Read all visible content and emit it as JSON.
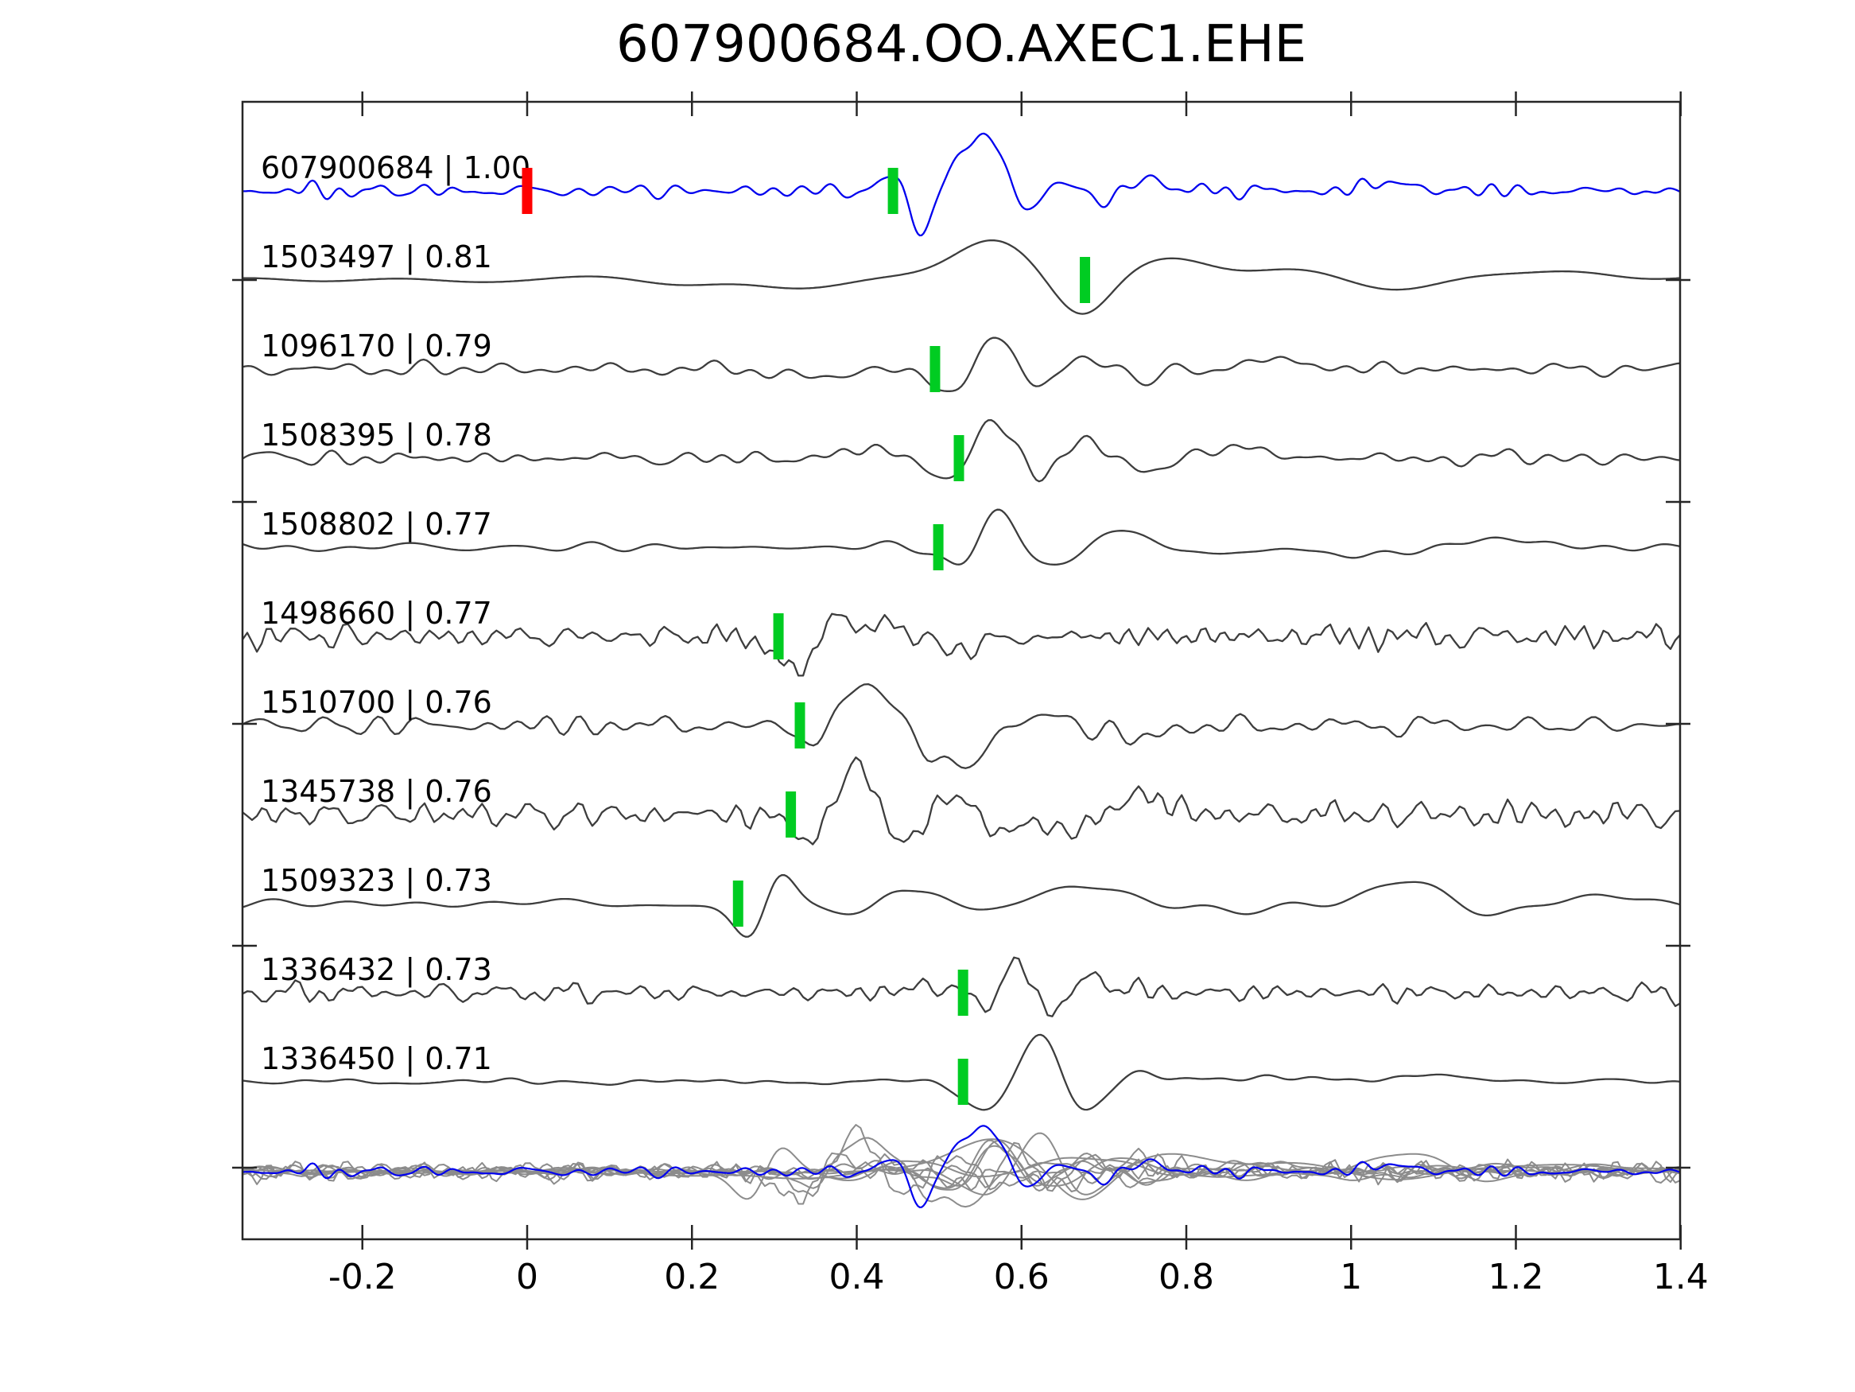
{
  "title": "607900684.OO.AXEC1.EHE",
  "label_separator": " | ",
  "colors": {
    "template_trace": "#0000ee",
    "match_trace": "#3d3d3d",
    "overlay_trace": "#8c8c8c",
    "pick_marker": "#00cc22",
    "origin_marker": "#ff0000",
    "spine": "#262626",
    "text": "#000000",
    "background": "#ffffff"
  },
  "x_axis": {
    "tick_values": [
      -0.2,
      0,
      0.2,
      0.4,
      0.6,
      0.8,
      1,
      1.2,
      1.4
    ],
    "tick_labels": [
      "-0.2",
      "0",
      "0.2",
      "0.4",
      "0.6",
      "0.8",
      "1",
      "1.2",
      "1.4"
    ]
  },
  "chart_data": {
    "type": "line",
    "title": "607900684.OO.AXEC1.EHE",
    "xlabel": "",
    "ylabel": "",
    "x_range": [
      -0.3455,
      1.3993
    ],
    "x_ticks": [
      -0.2,
      0,
      0.2,
      0.4,
      0.6,
      0.8,
      1,
      1.2,
      1.4
    ],
    "grid": false,
    "legend": null,
    "description": "Template waveform (blue) and ten matched event waveforms (dark gray), each annotated with event id and correlation coefficient; green bars mark pick times, red bar marks template zero time; all traces superimposed at the bottom (gray) with the blue template on top.",
    "traces": [
      {
        "id": "607900684",
        "correlation": "1.00",
        "role": "template",
        "color": "blue",
        "pick_time": 0.444,
        "origin_marker_time": 0.0
      },
      {
        "id": "1503497",
        "correlation": "0.81",
        "role": "match",
        "color": "dark-gray",
        "pick_time": 0.677
      },
      {
        "id": "1096170",
        "correlation": "0.79",
        "role": "match",
        "color": "dark-gray",
        "pick_time": 0.495
      },
      {
        "id": "1508395",
        "correlation": "0.78",
        "role": "match",
        "color": "dark-gray",
        "pick_time": 0.524
      },
      {
        "id": "1508802",
        "correlation": "0.77",
        "role": "match",
        "color": "dark-gray",
        "pick_time": 0.499
      },
      {
        "id": "1498660",
        "correlation": "0.77",
        "role": "match",
        "color": "dark-gray",
        "pick_time": 0.305
      },
      {
        "id": "1510700",
        "correlation": "0.76",
        "role": "match",
        "color": "dark-gray",
        "pick_time": 0.331
      },
      {
        "id": "1345738",
        "correlation": "0.76",
        "role": "match",
        "color": "dark-gray",
        "pick_time": 0.32
      },
      {
        "id": "1509323",
        "correlation": "0.73",
        "role": "match",
        "color": "dark-gray",
        "pick_time": 0.256
      },
      {
        "id": "1336432",
        "correlation": "0.73",
        "role": "match",
        "color": "dark-gray",
        "pick_time": 0.529
      },
      {
        "id": "1336450",
        "correlation": "0.71",
        "role": "match",
        "color": "dark-gray",
        "pick_time": 0.529
      }
    ],
    "overlay": {
      "present": true,
      "position": "bottom",
      "gray_traces": 10,
      "highlight_trace": "607900684"
    }
  }
}
